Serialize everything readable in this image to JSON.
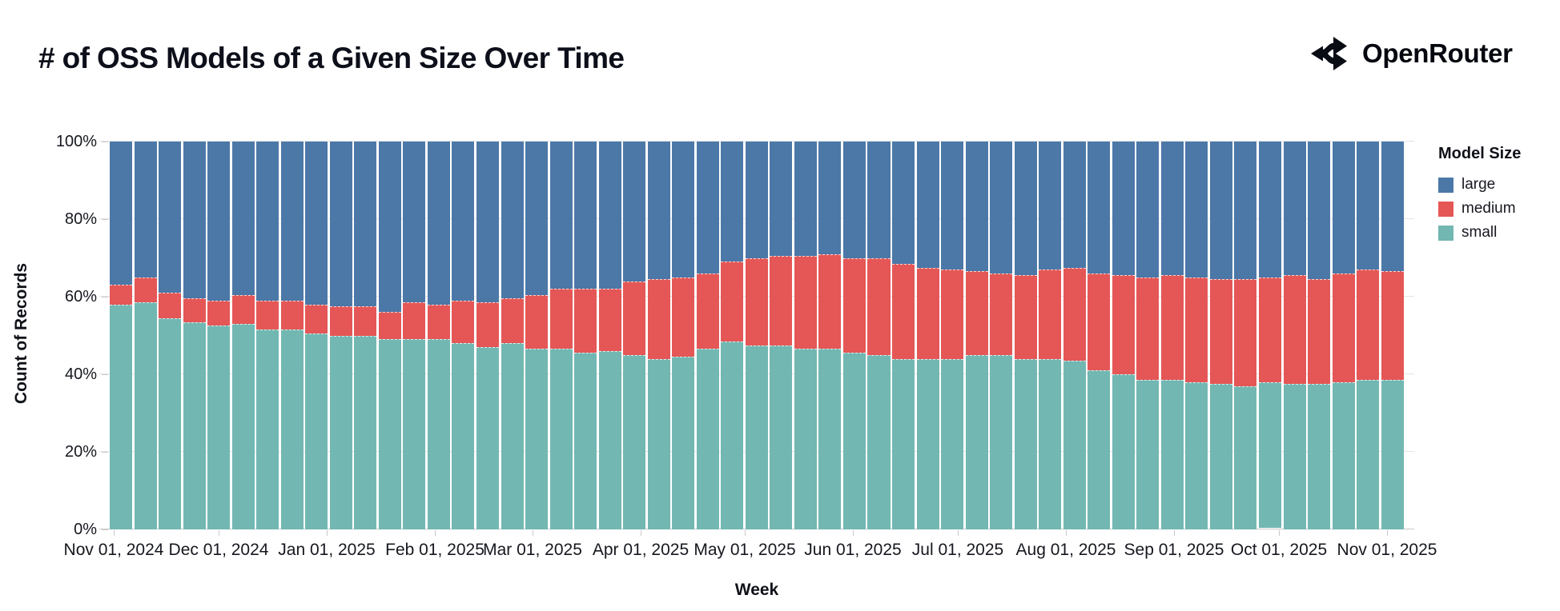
{
  "brand": {
    "name": "OpenRouter"
  },
  "chart_data": {
    "type": "bar",
    "variant": "stacked-percent",
    "title": "# of OSS Models of a Given Size Over Time",
    "xlabel": "Week",
    "ylabel": "Count of Records",
    "x_axis": {
      "tick_labels": [
        "Nov 01, 2024",
        "Dec 01, 2024",
        "Jan 01, 2025",
        "Feb 01, 2025",
        "Mar 01, 2025",
        "Apr 01, 2025",
        "May 01, 2025",
        "Jun 01, 2025",
        "Jul 01, 2025",
        "Aug 01, 2025",
        "Sep 01, 2025",
        "Oct 01, 2025",
        "Nov 01, 2025"
      ],
      "tick_day_offsets": [
        0,
        30,
        61,
        92,
        120,
        151,
        181,
        212,
        242,
        273,
        304,
        334,
        365
      ]
    },
    "y_axis": {
      "tick_labels": [
        "0%",
        "20%",
        "40%",
        "60%",
        "80%",
        "100%"
      ],
      "min": 0,
      "max": 100,
      "grid": true
    },
    "legend": {
      "title": "Model Size",
      "position": "right",
      "entries": [
        {
          "label": "large",
          "color": "#4c78a8"
        },
        {
          "label": "medium",
          "color": "#e45756"
        },
        {
          "label": "small",
          "color": "#72b7b2"
        }
      ]
    },
    "weeks": [
      "Nov 01, 2024",
      "Nov 08, 2024",
      "Nov 15, 2024",
      "Nov 22, 2024",
      "Nov 29, 2024",
      "Dec 06, 2024",
      "Dec 13, 2024",
      "Dec 20, 2024",
      "Dec 27, 2024",
      "Jan 03, 2025",
      "Jan 10, 2025",
      "Jan 17, 2025",
      "Jan 24, 2025",
      "Jan 31, 2025",
      "Feb 07, 2025",
      "Feb 14, 2025",
      "Feb 21, 2025",
      "Feb 28, 2025",
      "Mar 07, 2025",
      "Mar 14, 2025",
      "Mar 21, 2025",
      "Mar 28, 2025",
      "Apr 04, 2025",
      "Apr 11, 2025",
      "Apr 18, 2025",
      "Apr 25, 2025",
      "May 02, 2025",
      "May 09, 2025",
      "May 16, 2025",
      "May 23, 2025",
      "May 30, 2025",
      "Jun 06, 2025",
      "Jun 13, 2025",
      "Jun 20, 2025",
      "Jun 27, 2025",
      "Jul 04, 2025",
      "Jul 11, 2025",
      "Jul 18, 2025",
      "Jul 25, 2025",
      "Aug 01, 2025",
      "Aug 08, 2025",
      "Aug 15, 2025",
      "Aug 22, 2025",
      "Aug 29, 2025",
      "Sep 05, 2025",
      "Sep 12, 2025",
      "Sep 19, 2025",
      "Sep 26, 2025",
      "Oct 03, 2025",
      "Oct 10, 2025",
      "Oct 17, 2025",
      "Oct 24, 2025",
      "Oct 31, 2025"
    ],
    "series": [
      {
        "name": "large",
        "color": "#4c78a8",
        "values": [
          37,
          35,
          39,
          40.5,
          41,
          39.5,
          41,
          41,
          42,
          42.5,
          42.5,
          44,
          41.5,
          42,
          41,
          41.5,
          40.5,
          39.5,
          38,
          38,
          38,
          36,
          35.5,
          35,
          34,
          31,
          30,
          29.5,
          29.5,
          29,
          30,
          30,
          31.5,
          32.5,
          33,
          33.5,
          34,
          34.5,
          33,
          32.5,
          34,
          34.5,
          35,
          34.5,
          35,
          35.5,
          35.5,
          35,
          34.5,
          35.5,
          34,
          33,
          33.5
        ]
      },
      {
        "name": "medium",
        "color": "#e45756",
        "values": [
          5,
          6.5,
          6.5,
          6,
          6.5,
          7.5,
          7.5,
          7.5,
          7.5,
          7.5,
          7.5,
          7,
          9.5,
          9,
          11,
          11.5,
          11.5,
          14,
          15.5,
          16.5,
          16,
          19,
          20.5,
          20.5,
          19.5,
          20.5,
          22.5,
          23,
          24,
          24.5,
          24.5,
          25,
          24.5,
          23.5,
          23,
          21.5,
          21,
          21.5,
          23,
          24,
          25,
          25.5,
          26.5,
          27,
          27,
          27,
          27.5,
          27,
          28,
          27,
          28,
          28.5,
          28
        ]
      },
      {
        "name": "small",
        "color": "#72b7b2",
        "values": [
          58,
          58.5,
          54.5,
          53.5,
          52.5,
          53,
          51.5,
          51.5,
          50.5,
          50,
          50,
          49,
          49,
          49,
          48,
          47,
          48,
          46.5,
          46.5,
          45.5,
          46,
          45,
          44,
          44.5,
          46.5,
          48.5,
          47.5,
          47.5,
          46.5,
          46.5,
          45.5,
          45,
          44,
          44,
          44,
          45,
          45,
          44,
          44,
          43.5,
          41,
          40,
          38.5,
          38.5,
          38,
          37.5,
          37,
          37.5,
          37.5,
          37.5,
          38,
          38.5,
          38.5
        ]
      }
    ]
  }
}
